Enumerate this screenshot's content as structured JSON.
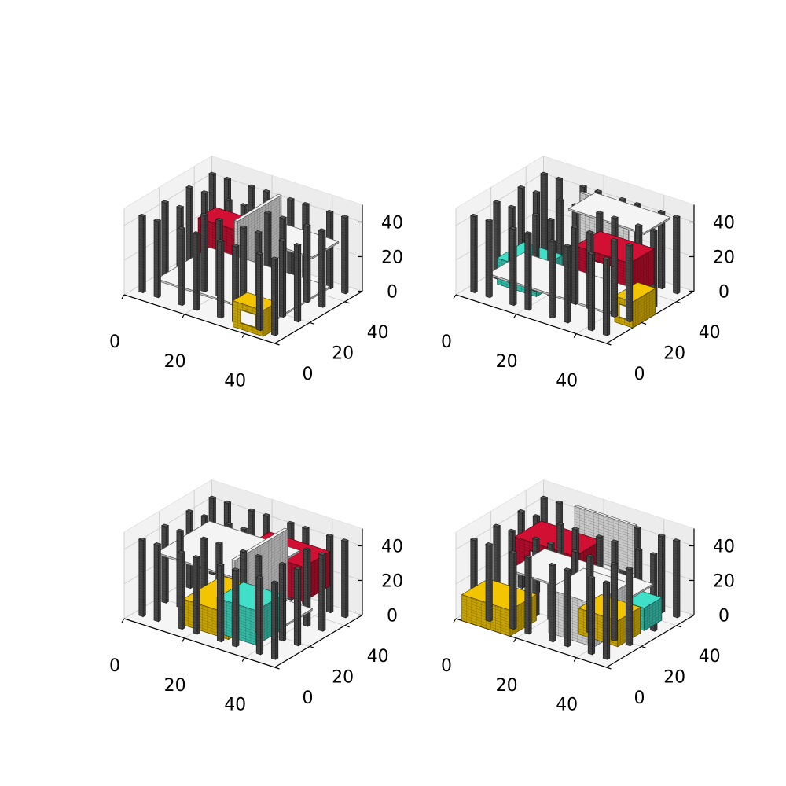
{
  "chart_data": [
    {
      "type": "voxels",
      "x_ticks": [
        0,
        20,
        40
      ],
      "y_ticks": [
        0,
        20,
        40
      ],
      "z_ticks": [
        0,
        20,
        40
      ],
      "xlim": [
        0,
        50
      ],
      "ylim": [
        0,
        50
      ],
      "zlim": [
        0,
        50
      ],
      "grid": true,
      "colors": {
        "pillar": "#555555",
        "red": "#d21034",
        "yellow": "#f2c500",
        "cyan": "#40e0c8",
        "white": "#f4f4f4"
      },
      "voxels": [
        {
          "kind": "red",
          "x": [
            10,
            30
          ],
          "y": [
            25,
            35
          ],
          "z": [
            15,
            35
          ],
          "frame": false
        },
        {
          "kind": "white",
          "x": [
            5,
            45
          ],
          "y": [
            10,
            40
          ],
          "z": [
            5,
            6
          ],
          "frame": false
        },
        {
          "kind": "white",
          "x": [
            25,
            45
          ],
          "y": [
            30,
            45
          ],
          "z": [
            28,
            29
          ],
          "frame": false
        },
        {
          "kind": "white",
          "x": [
            25,
            26
          ],
          "y": [
            20,
            45
          ],
          "z": [
            10,
            45
          ],
          "frame": false
        },
        {
          "kind": "yellow",
          "x": [
            35,
            45
          ],
          "y": [
            2,
            10
          ],
          "z": [
            0,
            15
          ],
          "frame": true
        }
      ]
    },
    {
      "type": "voxels",
      "x_ticks": [
        0,
        20,
        40
      ],
      "y_ticks": [
        0,
        20,
        40
      ],
      "z_ticks": [
        0,
        20,
        40
      ],
      "xlim": [
        0,
        50
      ],
      "ylim": [
        0,
        50
      ],
      "zlim": [
        0,
        50
      ],
      "grid": true,
      "colors": {
        "pillar": "#555555",
        "red": "#d21034",
        "yellow": "#f2c500",
        "cyan": "#40e0c8",
        "white": "#f4f4f4"
      },
      "voxels": [
        {
          "kind": "cyan",
          "x": [
            5,
            18
          ],
          "y": [
            15,
            30
          ],
          "z": [
            0,
            15
          ],
          "frame": false
        },
        {
          "kind": "white",
          "x": [
            5,
            45
          ],
          "y": [
            10,
            30
          ],
          "z": [
            8,
            9
          ],
          "frame": false
        },
        {
          "kind": "white",
          "x": [
            18,
            34
          ],
          "y": [
            40,
            41
          ],
          "z": [
            15,
            45
          ],
          "frame": false
        },
        {
          "kind": "white",
          "x": [
            20,
            45
          ],
          "y": [
            30,
            45
          ],
          "z": [
            42,
            43
          ],
          "frame": false
        },
        {
          "kind": "red",
          "x": [
            28,
            46
          ],
          "y": [
            20,
            34
          ],
          "z": [
            12,
            32
          ],
          "frame": true
        },
        {
          "kind": "yellow",
          "x": [
            44,
            50
          ],
          "y": [
            15,
            28
          ],
          "z": [
            0,
            15
          ],
          "frame": true
        }
      ]
    },
    {
      "type": "voxels",
      "x_ticks": [
        0,
        20,
        40
      ],
      "y_ticks": [
        0,
        20,
        40
      ],
      "z_ticks": [
        0,
        20,
        40
      ],
      "xlim": [
        0,
        50
      ],
      "ylim": [
        0,
        50
      ],
      "zlim": [
        0,
        50
      ],
      "grid": true,
      "colors": {
        "pillar": "#555555",
        "red": "#d21034",
        "yellow": "#f2c500",
        "cyan": "#40e0c8",
        "white": "#f4f4f4"
      },
      "voxels": [
        {
          "kind": "yellow",
          "x": [
            15,
            30
          ],
          "y": [
            8,
            30
          ],
          "z": [
            0,
            15
          ],
          "frame": false
        },
        {
          "kind": "cyan",
          "x": [
            25,
            38
          ],
          "y": [
            10,
            25
          ],
          "z": [
            0,
            20
          ],
          "frame": false
        },
        {
          "kind": "white",
          "x": [
            25,
            45
          ],
          "y": [
            15,
            30
          ],
          "z": [
            12,
            13
          ],
          "frame": false
        },
        {
          "kind": "red",
          "x": [
            25,
            45
          ],
          "y": [
            25,
            40
          ],
          "z": [
            20,
            40
          ],
          "frame": false
        },
        {
          "kind": "white",
          "x": [
            5,
            35
          ],
          "y": [
            10,
            40
          ],
          "z": [
            34,
            35
          ],
          "frame": false
        },
        {
          "kind": "white",
          "x": [
            30,
            31
          ],
          "y": [
            10,
            40
          ],
          "z": [
            5,
            45
          ],
          "frame": false
        }
      ]
    },
    {
      "type": "voxels",
      "x_ticks": [
        0,
        20,
        40
      ],
      "y_ticks": [
        0,
        20,
        40
      ],
      "z_ticks": [
        0,
        20,
        40
      ],
      "xlim": [
        0,
        50
      ],
      "ylim": [
        0,
        50
      ],
      "zlim": [
        0,
        50
      ],
      "grid": true,
      "colors": {
        "pillar": "#555555",
        "red": "#d21034",
        "yellow": "#f2c500",
        "cyan": "#40e0c8",
        "white": "#f4f4f4"
      },
      "voxels": [
        {
          "kind": "yellow",
          "x": [
            2,
            18
          ],
          "y": [
            0,
            15
          ],
          "z": [
            0,
            15
          ],
          "frame": false
        },
        {
          "kind": "cyan",
          "x": [
            38,
            48
          ],
          "y": [
            25,
            35
          ],
          "z": [
            5,
            18
          ],
          "frame": false
        },
        {
          "kind": "yellow",
          "x": [
            32,
            45
          ],
          "y": [
            15,
            28
          ],
          "z": [
            0,
            15
          ],
          "frame": false
        },
        {
          "kind": "white",
          "x": [
            25,
            40
          ],
          "y": [
            10,
            30
          ],
          "z": [
            0,
            25
          ],
          "frame": false
        },
        {
          "kind": "red",
          "x": [
            5,
            25
          ],
          "y": [
            25,
            40
          ],
          "z": [
            15,
            35
          ],
          "frame": true
        },
        {
          "kind": "white",
          "x": [
            12,
            48
          ],
          "y": [
            10,
            30
          ],
          "z": [
            28,
            29
          ],
          "frame": false
        },
        {
          "kind": "white",
          "x": [
            15,
            35
          ],
          "y": [
            42,
            43
          ],
          "z": [
            20,
            48
          ],
          "frame": false
        }
      ]
    }
  ],
  "pillars_xy": [
    [
      2,
      5
    ],
    [
      7,
      5
    ],
    [
      2,
      18
    ],
    [
      7,
      18
    ],
    [
      2,
      32
    ],
    [
      7,
      32
    ],
    [
      2,
      45
    ],
    [
      7,
      45
    ],
    [
      15,
      5
    ],
    [
      20,
      5
    ],
    [
      15,
      18
    ],
    [
      20,
      18
    ],
    [
      15,
      32
    ],
    [
      20,
      32
    ],
    [
      15,
      45
    ],
    [
      20,
      45
    ],
    [
      28,
      5
    ],
    [
      33,
      5
    ],
    [
      28,
      18
    ],
    [
      33,
      18
    ],
    [
      28,
      32
    ],
    [
      33,
      32
    ],
    [
      28,
      45
    ],
    [
      33,
      45
    ],
    [
      41,
      5
    ],
    [
      46,
      5
    ],
    [
      41,
      18
    ],
    [
      46,
      18
    ],
    [
      41,
      32
    ],
    [
      46,
      32
    ],
    [
      41,
      45
    ],
    [
      46,
      45
    ]
  ]
}
